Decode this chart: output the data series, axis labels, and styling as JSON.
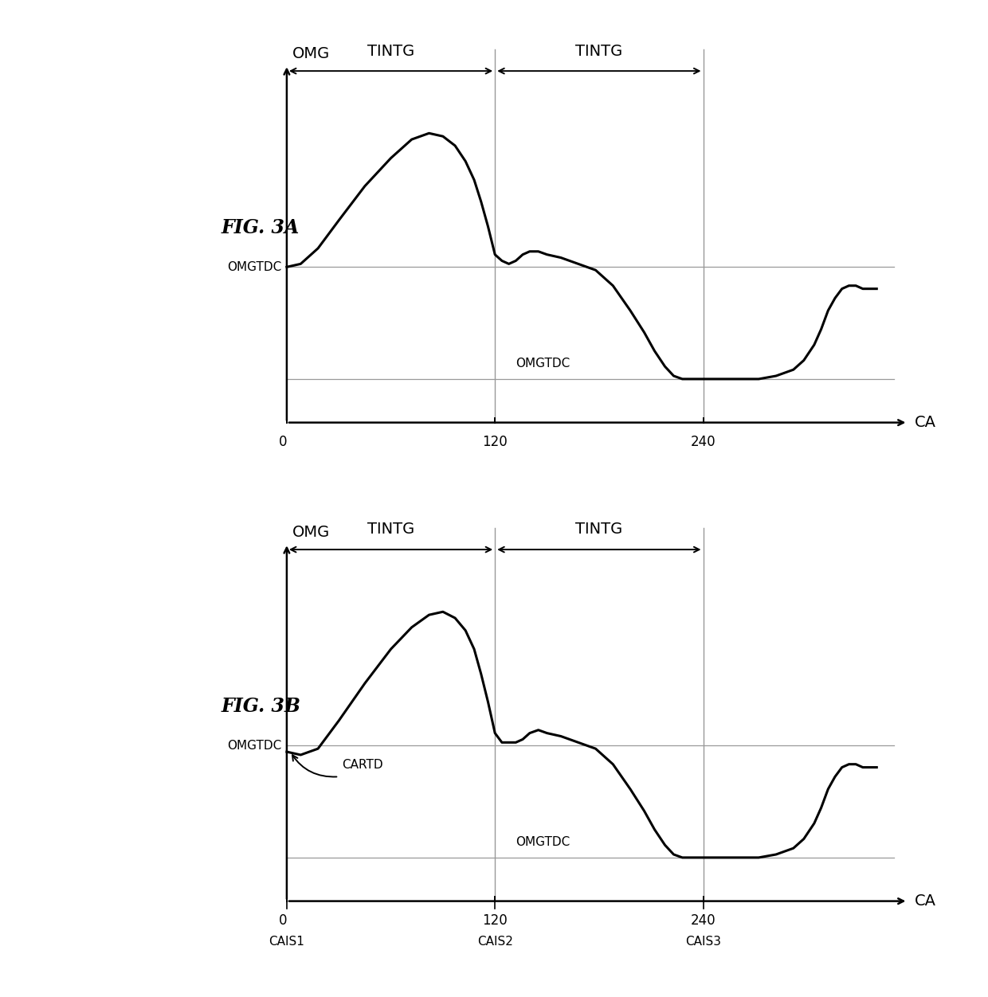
{
  "fig_width": 12.4,
  "fig_height": 12.52,
  "background_color": "#ffffff",
  "line_color": "#000000",
  "line_width": 2.2,
  "grid_line_color": "#999999",
  "fig3a_label": "FIG. 3A",
  "fig3b_label": "FIG. 3B",
  "omg_label": "OMG",
  "ca_label": "CA",
  "tintg_label": "TINTG",
  "omgtdc_label": "OMGTDC",
  "cartd_label": "CARTD",
  "cais1_label": "CAIS1",
  "cais2_label": "CAIS2",
  "cais3_label": "CAIS3",
  "x_ticks": [
    0,
    120,
    240
  ],
  "x_tick_labels": [
    "0",
    "120",
    "240"
  ],
  "xmax": 340,
  "omgtdc_high": 0.4,
  "omgtdc_low": 0.04,
  "curve_x": [
    0,
    8,
    18,
    30,
    45,
    60,
    72,
    82,
    90,
    97,
    103,
    108,
    112,
    116,
    120,
    124,
    128,
    132,
    136,
    140,
    145,
    150,
    158,
    168,
    178,
    188,
    198,
    206,
    212,
    218,
    223,
    228,
    232,
    236,
    240,
    244,
    248,
    254,
    262,
    272,
    282,
    292,
    298,
    304,
    308,
    312,
    316,
    320,
    324,
    328,
    332,
    336,
    340
  ],
  "curve_y_3a": [
    0.4,
    0.41,
    0.46,
    0.55,
    0.66,
    0.75,
    0.81,
    0.83,
    0.82,
    0.79,
    0.74,
    0.68,
    0.61,
    0.53,
    0.44,
    0.42,
    0.41,
    0.42,
    0.44,
    0.45,
    0.45,
    0.44,
    0.43,
    0.41,
    0.39,
    0.34,
    0.26,
    0.19,
    0.13,
    0.08,
    0.05,
    0.04,
    0.04,
    0.04,
    0.04,
    0.04,
    0.04,
    0.04,
    0.04,
    0.04,
    0.05,
    0.07,
    0.1,
    0.15,
    0.2,
    0.26,
    0.3,
    0.33,
    0.34,
    0.34,
    0.33,
    0.33,
    0.33
  ],
  "curve_y_3b": [
    0.38,
    0.37,
    0.39,
    0.48,
    0.6,
    0.71,
    0.78,
    0.82,
    0.83,
    0.81,
    0.77,
    0.71,
    0.63,
    0.54,
    0.44,
    0.41,
    0.41,
    0.41,
    0.42,
    0.44,
    0.45,
    0.44,
    0.43,
    0.41,
    0.39,
    0.34,
    0.26,
    0.19,
    0.13,
    0.08,
    0.05,
    0.04,
    0.04,
    0.04,
    0.04,
    0.04,
    0.04,
    0.04,
    0.04,
    0.04,
    0.05,
    0.07,
    0.1,
    0.15,
    0.2,
    0.26,
    0.3,
    0.33,
    0.34,
    0.34,
    0.33,
    0.33,
    0.33
  ],
  "vline_x1": 120,
  "vline_x2": 240
}
